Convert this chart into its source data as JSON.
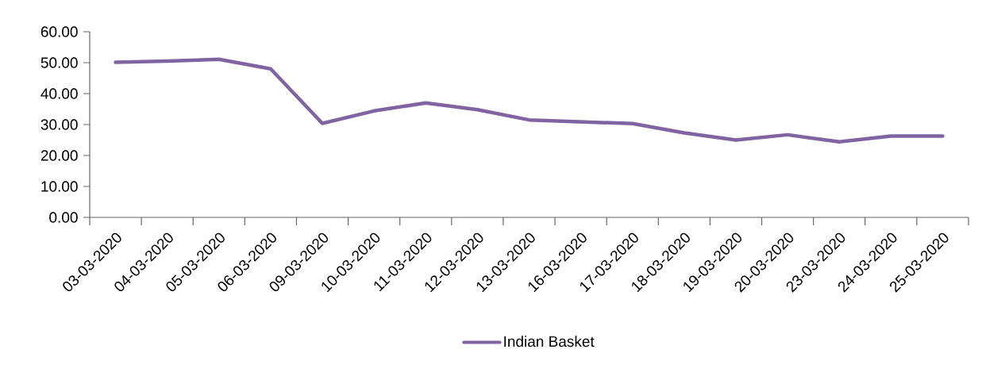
{
  "chart_data": {
    "type": "line",
    "categories": [
      "03-03-2020",
      "04-03-2020",
      "05-03-2020",
      "06-03-2020",
      "09-03-2020",
      "10-03-2020",
      "11-03-2020",
      "12-03-2020",
      "13-03-2020",
      "16-03-2020",
      "17-03-2020",
      "18-03-2020",
      "19-03-2020",
      "20-03-2020",
      "23-03-2020",
      "24-03-2020",
      "25-03-2020"
    ],
    "series": [
      {
        "name": "Indian Basket",
        "color": "#8064a2",
        "values": [
          50.1,
          50.5,
          51.1,
          48.0,
          30.4,
          34.4,
          37.0,
          34.8,
          31.5,
          30.9,
          30.3,
          27.3,
          25.0,
          26.7,
          24.4,
          26.3,
          26.3
        ]
      }
    ],
    "ylim": [
      0,
      60
    ],
    "yticks": [
      {
        "value": 0,
        "label": "0.00"
      },
      {
        "value": 10,
        "label": "10.00"
      },
      {
        "value": 20,
        "label": "20.00"
      },
      {
        "value": 30,
        "label": "30.00"
      },
      {
        "value": 40,
        "label": "40.00"
      },
      {
        "value": 50,
        "label": "50.00"
      },
      {
        "value": 60,
        "label": "60.00"
      }
    ],
    "grid": false,
    "legend": "bottom",
    "marker": "none",
    "line_style": "solid"
  }
}
